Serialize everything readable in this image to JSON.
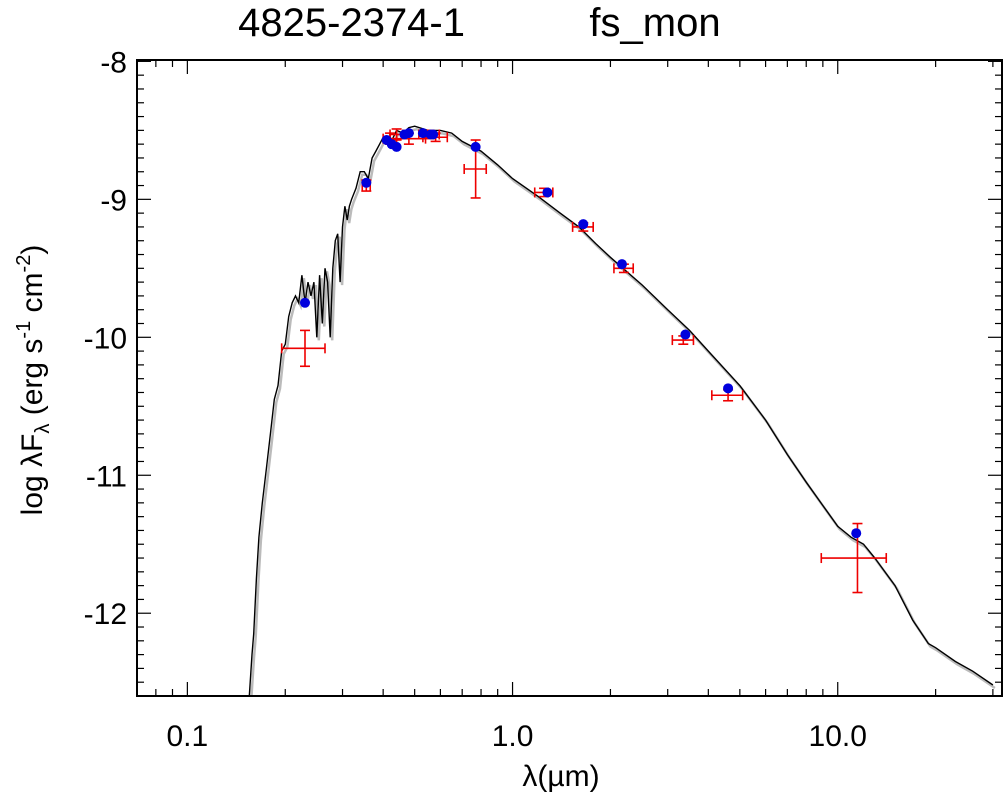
{
  "chart_data": {
    "type": "scatter",
    "title": "4825-2374-1",
    "subtitle": "fs_mon",
    "xlabel": {
      "lambda": "λ",
      "unit": "(µm)"
    },
    "ylabel": {
      "prefix": "log λF",
      "sub": "λ",
      "unit_open": " (erg s",
      "exp1": "-1",
      "mid": " cm",
      "exp2": "-2",
      "close": ")"
    },
    "xscale": "log",
    "xlim": [
      0.07,
      32
    ],
    "ylim": [
      -12.6,
      -7.99
    ],
    "x_tick_labels": [
      {
        "value": 0.1,
        "label": "0.1"
      },
      {
        "value": 1.0,
        "label": "1.0"
      },
      {
        "value": 10.0,
        "label": "10.0"
      }
    ],
    "y_tick_labels": [
      {
        "value": -8,
        "label": "-8"
      },
      {
        "value": -9,
        "label": "-9"
      },
      {
        "value": -10,
        "label": "-10"
      },
      {
        "value": -11,
        "label": "-11"
      },
      {
        "value": -12,
        "label": "-12"
      }
    ],
    "model_sed": {
      "color": "#000000",
      "shadow_color": "#bbbbbb",
      "x": [
        0.155,
        0.158,
        0.16,
        0.163,
        0.166,
        0.17,
        0.175,
        0.18,
        0.185,
        0.19,
        0.195,
        0.2,
        0.205,
        0.21,
        0.215,
        0.22,
        0.225,
        0.23,
        0.235,
        0.24,
        0.245,
        0.25,
        0.255,
        0.26,
        0.265,
        0.27,
        0.275,
        0.28,
        0.285,
        0.29,
        0.295,
        0.3,
        0.305,
        0.31,
        0.315,
        0.32,
        0.33,
        0.34,
        0.35,
        0.36,
        0.37,
        0.38,
        0.39,
        0.4,
        0.42,
        0.44,
        0.46,
        0.48,
        0.5,
        0.55,
        0.6,
        0.65,
        0.7,
        0.8,
        0.9,
        1.0,
        1.2,
        1.4,
        1.6,
        1.8,
        2.0,
        2.5,
        3.0,
        3.5,
        4.0,
        5.0,
        6.0,
        7.0,
        8.0,
        9.0,
        10.0,
        11.0,
        12.0,
        13.0,
        15.0,
        17.0,
        19.0,
        20.0,
        23.0,
        26.0,
        30.0
      ],
      "y": [
        -12.6,
        -12.3,
        -12.15,
        -11.75,
        -11.45,
        -11.2,
        -10.95,
        -10.7,
        -10.45,
        -10.35,
        -10.1,
        -10.05,
        -9.85,
        -9.75,
        -9.7,
        -9.75,
        -9.55,
        -9.75,
        -9.6,
        -9.7,
        -9.6,
        -10.0,
        -9.55,
        -9.9,
        -9.5,
        -9.6,
        -10.0,
        -9.5,
        -9.3,
        -9.25,
        -9.6,
        -9.2,
        -9.05,
        -9.15,
        -9.05,
        -9.0,
        -8.92,
        -8.8,
        -8.8,
        -8.85,
        -8.7,
        -8.65,
        -8.6,
        -8.55,
        -8.6,
        -8.5,
        -8.52,
        -8.48,
        -8.47,
        -8.5,
        -8.5,
        -8.52,
        -8.58,
        -8.65,
        -8.75,
        -8.85,
        -8.98,
        -9.1,
        -9.2,
        -9.32,
        -9.42,
        -9.62,
        -9.8,
        -9.95,
        -10.1,
        -10.35,
        -10.6,
        -10.85,
        -11.05,
        -11.22,
        -11.37,
        -11.45,
        -11.5,
        -11.6,
        -11.8,
        -12.05,
        -12.22,
        -12.25,
        -12.35,
        -12.42,
        -12.52
      ]
    },
    "model_photometry": {
      "color": "#0000dd",
      "x": [
        0.23,
        0.355,
        0.41,
        0.425,
        0.44,
        0.465,
        0.48,
        0.53,
        0.56,
        0.57,
        0.77,
        1.28,
        1.65,
        2.17,
        3.4,
        4.6,
        11.4
      ],
      "y": [
        -9.75,
        -8.88,
        -8.57,
        -8.6,
        -8.62,
        -8.53,
        -8.52,
        -8.52,
        -8.53,
        -8.53,
        -8.62,
        -8.95,
        -9.18,
        -9.47,
        -9.98,
        -10.37,
        -11.42
      ]
    },
    "observed_photometry": {
      "color": "#ee0000",
      "x": [
        0.23,
        0.355,
        0.42,
        0.44,
        0.48,
        0.555,
        0.58,
        0.77,
        1.25,
        1.65,
        2.2,
        3.35,
        4.6,
        11.5
      ],
      "y": [
        -10.08,
        -8.9,
        -8.56,
        -8.53,
        -8.56,
        -8.53,
        -8.55,
        -8.78,
        -8.95,
        -9.2,
        -9.5,
        -10.02,
        -10.42,
        -11.6
      ],
      "xerr_lo": [
        0.035,
        0.01,
        0.02,
        0.02,
        0.06,
        0.04,
        0.05,
        0.06,
        0.08,
        0.12,
        0.15,
        0.25,
        0.5,
        2.6
      ],
      "xerr_hi": [
        0.035,
        0.01,
        0.02,
        0.02,
        0.06,
        0.04,
        0.05,
        0.06,
        0.08,
        0.12,
        0.15,
        0.25,
        0.5,
        2.6
      ],
      "yerr_lo": [
        0.13,
        0.04,
        0.04,
        0.04,
        0.04,
        0.03,
        0.03,
        0.21,
        0.03,
        0.03,
        0.03,
        0.03,
        0.04,
        0.25
      ],
      "yerr_hi": [
        0.13,
        0.04,
        0.04,
        0.04,
        0.04,
        0.03,
        0.03,
        0.21,
        0.03,
        0.03,
        0.03,
        0.03,
        0.04,
        0.25
      ]
    }
  }
}
